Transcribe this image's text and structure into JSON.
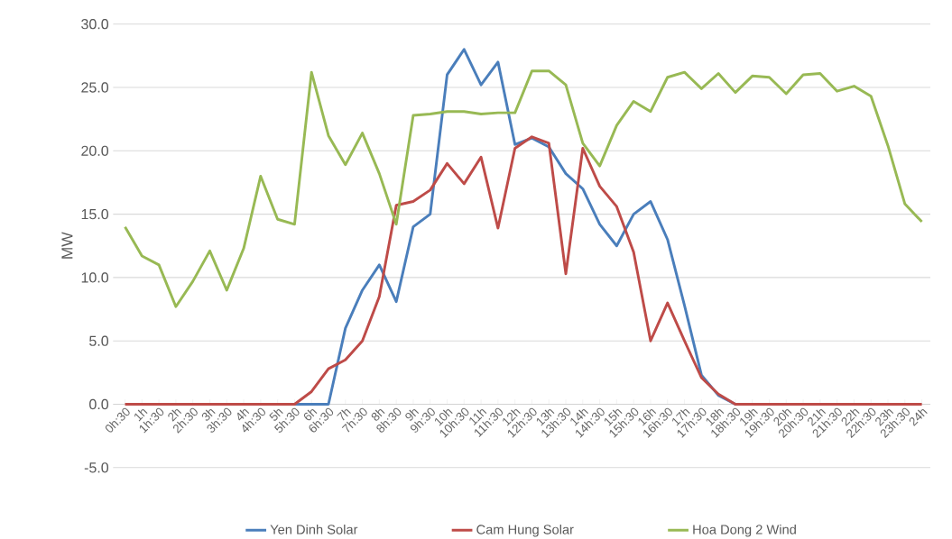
{
  "chart_data": {
    "type": "line",
    "ylabel": "MW",
    "categories": [
      "0h:30",
      "1h",
      "1h:30",
      "2h",
      "2h:30",
      "3h",
      "3h:30",
      "4h",
      "4h:30",
      "5h",
      "5h:30",
      "6h",
      "6h:30",
      "7h",
      "7h:30",
      "8h",
      "8h:30",
      "9h",
      "9h:30",
      "10h",
      "10h:30",
      "11h",
      "11h:30",
      "12h",
      "12h:30",
      "13h",
      "13h:30",
      "14h",
      "14h:30",
      "15h",
      "15h:30",
      "16h",
      "16h:30",
      "17h",
      "17h:30",
      "18h",
      "18h:30",
      "19h",
      "19h:30",
      "20h",
      "20h:30",
      "21h",
      "21h:30",
      "22h",
      "22h:30",
      "23h",
      "23h:30",
      "24h"
    ],
    "series": [
      {
        "name": "Yen Dinh Solar",
        "color": "#4a7ebb",
        "values": [
          null,
          null,
          null,
          null,
          null,
          null,
          null,
          null,
          null,
          0,
          0,
          0,
          0,
          6.0,
          9.0,
          11.0,
          8.1,
          14.0,
          15.0,
          26.0,
          28.0,
          25.2,
          27.0,
          20.5,
          21.0,
          20.3,
          18.2,
          17.0,
          14.2,
          12.5,
          15.0,
          16.0,
          13.0,
          7.8,
          2.3,
          0.7,
          0,
          0,
          null,
          null,
          null,
          null,
          null,
          null,
          null,
          null,
          null,
          null
        ]
      },
      {
        "name": "Cam Hung Solar",
        "color": "#be4b48",
        "values": [
          0,
          0,
          0,
          0,
          0,
          0,
          0,
          0,
          0,
          0,
          0,
          1.0,
          2.8,
          3.5,
          5.0,
          8.5,
          15.7,
          16.0,
          16.9,
          19.0,
          17.4,
          19.5,
          13.9,
          20.2,
          21.1,
          20.6,
          10.3,
          20.2,
          17.2,
          15.6,
          12.0,
          5.0,
          8.0,
          5.0,
          2.1,
          0.8,
          0,
          0,
          0,
          0,
          0,
          0,
          0,
          0,
          0,
          0,
          0,
          0
        ]
      },
      {
        "name": "Hoa Dong 2 Wind",
        "color": "#98b954",
        "values": [
          14.0,
          11.7,
          11.0,
          7.7,
          9.7,
          12.1,
          9.0,
          12.3,
          18.0,
          14.6,
          14.2,
          26.2,
          21.2,
          18.9,
          21.4,
          18.2,
          14.2,
          22.8,
          22.9,
          23.1,
          23.1,
          22.9,
          23.0,
          23.0,
          26.3,
          26.3,
          25.2,
          20.6,
          18.8,
          22.0,
          23.9,
          23.1,
          25.8,
          26.2,
          24.9,
          26.1,
          24.6,
          25.9,
          25.8,
          24.5,
          26.0,
          26.1,
          24.7,
          25.1,
          24.3,
          20.4,
          15.8,
          14.4
        ]
      }
    ],
    "ylim": [
      -5,
      30
    ],
    "yticks": [
      {
        "value": -5,
        "label": "-5.0"
      },
      {
        "value": 0,
        "label": "0.0"
      },
      {
        "value": 5,
        "label": "5.0"
      },
      {
        "value": 10,
        "label": "10.0"
      },
      {
        "value": 15,
        "label": "15.0"
      },
      {
        "value": 20,
        "label": "20.0"
      },
      {
        "value": 25,
        "label": "25.0"
      },
      {
        "value": 30,
        "label": "30.0"
      }
    ],
    "grid": "y",
    "legend": "bottom",
    "marker": "none",
    "line_style": "solid"
  }
}
